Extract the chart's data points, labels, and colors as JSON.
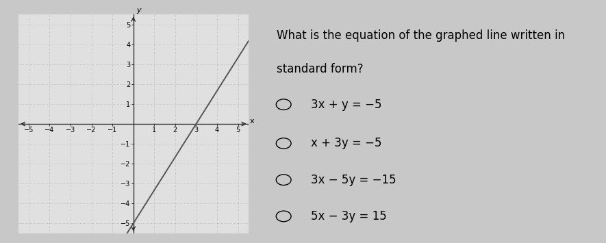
{
  "background_color": "#c8c8c8",
  "graph_bg_color": "#e0e0e0",
  "xlim": [
    -5.5,
    5.5
  ],
  "ylim": [
    -5.5,
    5.5
  ],
  "xtick_vals": [
    -5,
    -4,
    -3,
    -2,
    -1,
    1,
    2,
    3,
    4,
    5
  ],
  "ytick_vals": [
    -5,
    -4,
    -3,
    -2,
    -1,
    1,
    2,
    3,
    4,
    5
  ],
  "slope": 1.6667,
  "intercept": -5,
  "line_color": "#555555",
  "line_width": 1.4,
  "grid_color": "#aaaaaa",
  "axis_color": "#333333",
  "question_title_line1": "What is the equation of the graphed line written in",
  "question_title_line2": "standard form?",
  "options": [
    "3x + y = −5",
    "x + 3y = −5",
    "3x − 5y = −15",
    "5x − 3y = 15"
  ],
  "title_fontsize": 12,
  "option_fontsize": 12,
  "xlabel": "x",
  "ylabel": "y"
}
